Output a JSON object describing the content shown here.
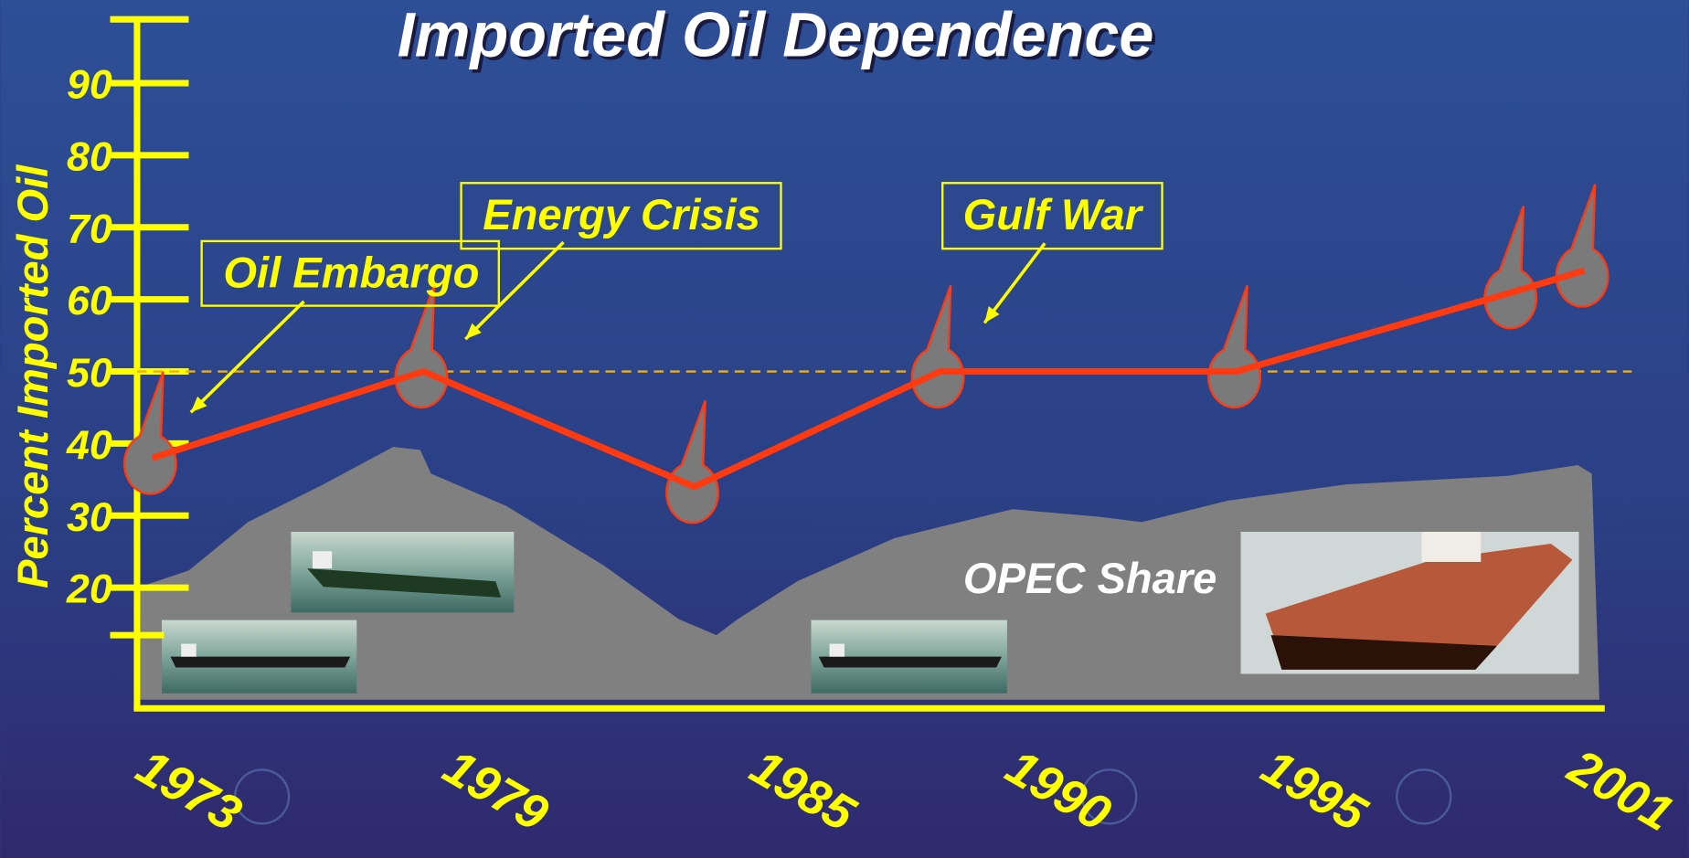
{
  "chart_data": {
    "type": "line",
    "title": "Imported Oil Dependence",
    "y_label": "Percent Imported Oil",
    "x": [
      1973,
      1978.3,
      1983.6,
      1988.4,
      1994.2,
      1999.6,
      2001
    ],
    "series": [
      {
        "name": "Percent Imported Oil",
        "color": "#ff3a10",
        "values": [
          38,
          50,
          34,
          50,
          50,
          61,
          64
        ]
      }
    ],
    "xlim": [
      1972.7,
      2001.4
    ],
    "xticks": [
      1973,
      1979,
      1985,
      1990,
      1995,
      2001
    ],
    "ylim": [
      4,
      99
    ],
    "yticks": [
      20,
      30,
      40,
      50,
      60,
      70,
      80,
      90
    ],
    "reference_y": 50,
    "annotations": [
      {
        "text": "Oil Embargo"
      },
      {
        "text": "Energy Crisis"
      },
      {
        "text": "Gulf War"
      },
      {
        "text": "OPEC Share"
      }
    ]
  }
}
